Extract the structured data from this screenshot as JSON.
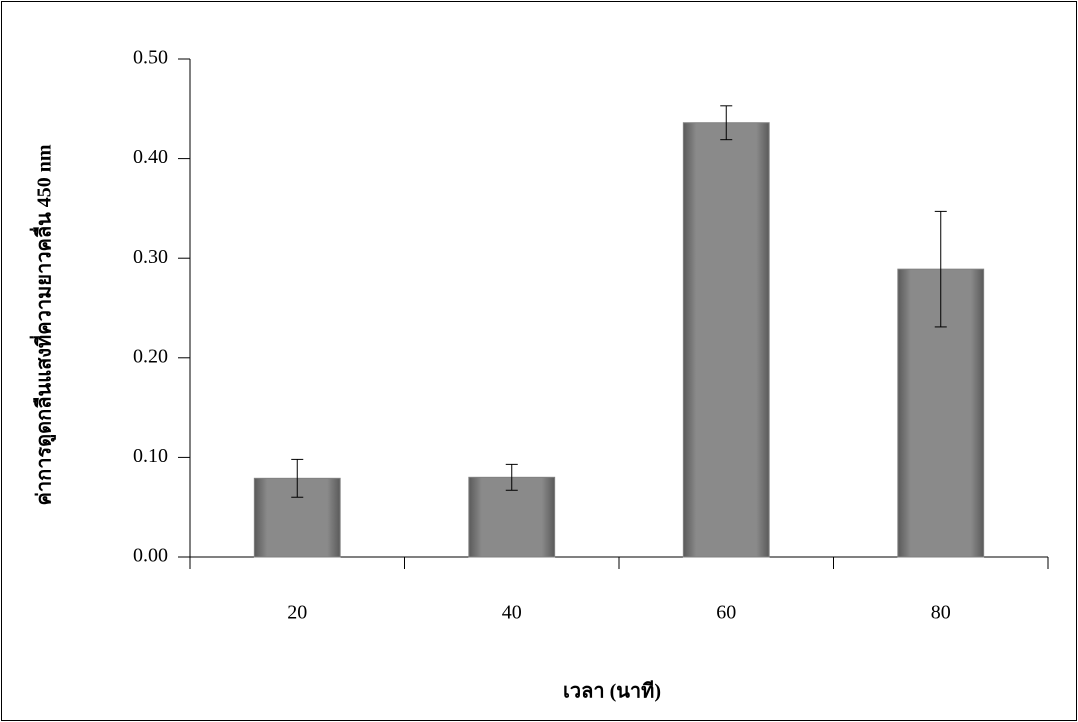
{
  "chart_data": {
    "type": "bar",
    "y_label": "ค่าการดูดกลืนแสงที่ความยาวคลื่น 450 nm",
    "x_label": "เวลา (นาที)",
    "categories": [
      "20",
      "40",
      "60",
      "80"
    ],
    "values": [
      0.079,
      0.08,
      0.436,
      0.289
    ],
    "errors": [
      0.019,
      0.013,
      0.017,
      0.058
    ],
    "color": "#808080",
    "ylim": [
      0,
      0.5
    ],
    "yticks": [
      {
        "value": 0,
        "label": "0.00"
      },
      {
        "value": 0.1,
        "label": "0.10"
      },
      {
        "value": 0.2,
        "label": "0.20"
      },
      {
        "value": 0.3,
        "label": "0.30"
      },
      {
        "value": 0.4,
        "label": "0.40"
      },
      {
        "value": 0.5,
        "label": "0.50"
      }
    ],
    "grid": false
  }
}
